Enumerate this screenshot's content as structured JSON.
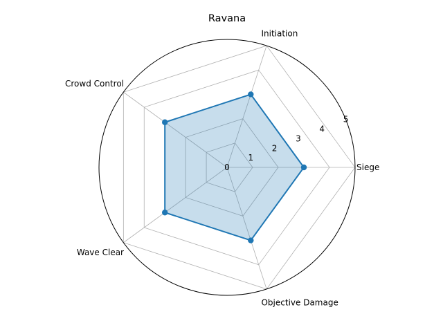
{
  "chart_data": {
    "type": "radar",
    "title": "Ravana",
    "categories": [
      "Siege",
      "Initiation",
      "Crowd Control",
      "Wave Clear",
      "Objective Damage"
    ],
    "series": [
      {
        "values": [
          3,
          3,
          3,
          3,
          3
        ]
      }
    ],
    "rlim": [
      0,
      5
    ],
    "r_ticks": [
      "0",
      "1",
      "2",
      "3",
      "4",
      "5"
    ],
    "grid": true,
    "colors": {
      "line": "#1f77b4",
      "fill": "#1f77b4",
      "grid": "#b0b0b0",
      "outer": "#000000"
    }
  }
}
